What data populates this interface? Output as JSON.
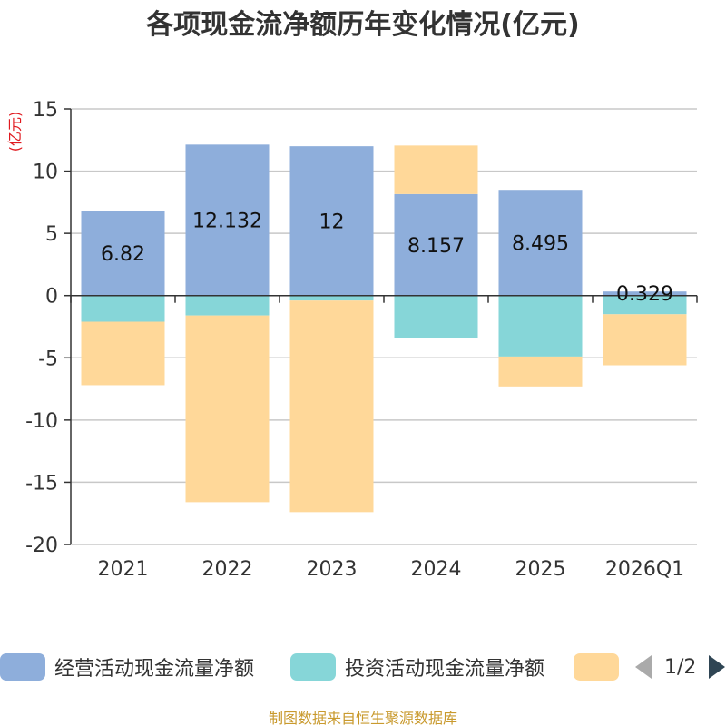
{
  "title": "各项现金流净额历年变化情况(亿元)",
  "source_note": "制图数据来自恒生聚源数据库",
  "chart_data": {
    "type": "bar",
    "stacked": true,
    "title": "各项现金流净额历年变化情况(亿元)",
    "unit": "(亿元)",
    "categories": [
      "2021",
      "2022",
      "2023",
      "2024",
      "2025",
      "2026Q1"
    ],
    "ylim": [
      -20,
      15
    ],
    "yticks": [
      15,
      10,
      5,
      0,
      -5,
      -10,
      -15,
      -20
    ],
    "series": [
      {
        "name": "经营活动现金流量净额",
        "color": "#8eaedb",
        "values": [
          6.82,
          12.132,
          12,
          8.157,
          8.495,
          0.329
        ],
        "labels": [
          "6.82",
          "12.132",
          "12",
          "8.157",
          "8.495",
          "0.329"
        ]
      },
      {
        "name": "投资活动现金流量净额",
        "color": "#86d6d8",
        "values": [
          -2.1,
          -1.6,
          -0.4,
          -3.4,
          -4.9,
          -1.5
        ]
      },
      {
        "name": "",
        "color": "#ffd899",
        "values": [
          -5.1,
          -15.0,
          -17.0,
          3.9,
          -2.4,
          -4.1
        ]
      }
    ],
    "legend": {
      "position": "bottom",
      "page": "1/2"
    }
  }
}
